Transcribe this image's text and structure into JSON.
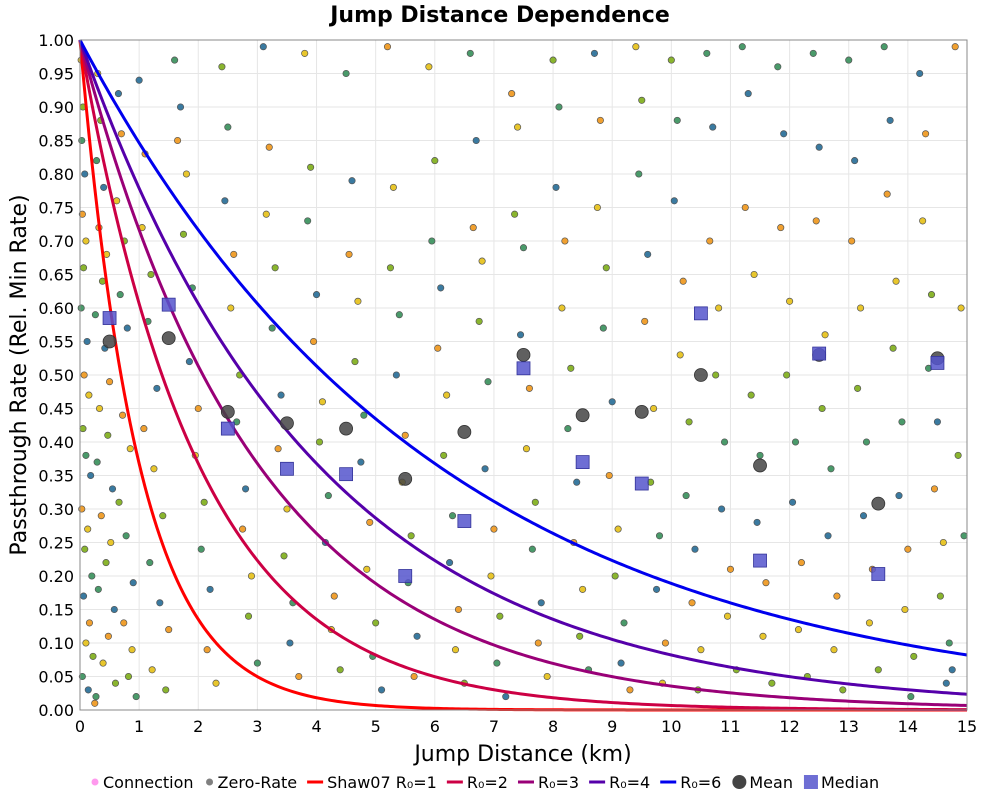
{
  "chart_data": {
    "type": "scatter",
    "title": "Jump Distance Dependence",
    "xlabel": "Jump Distance (km)",
    "ylabel": "Passthrough Rate (Rel. Min Rate)",
    "xlim": [
      0,
      15
    ],
    "ylim": [
      0,
      1
    ],
    "x_ticks": [
      0,
      1,
      2,
      3,
      4,
      5,
      6,
      7,
      8,
      9,
      10,
      11,
      12,
      13,
      14,
      15
    ],
    "y_ticks": [
      0.0,
      0.05,
      0.1,
      0.15,
      0.2,
      0.25,
      0.3,
      0.35,
      0.4,
      0.45,
      0.5,
      0.55,
      0.6,
      0.65,
      0.7,
      0.75,
      0.8,
      0.85,
      0.9,
      0.95,
      1.0
    ],
    "grid": true,
    "legend_position": "bottom",
    "colors": {
      "connection": "#ff99ee",
      "zero_rate": "#808080",
      "r1": "#ff0000",
      "r2": "#cc0044",
      "r3": "#990077",
      "r4": "#5500aa",
      "r6": "#0000ee",
      "mean": "#444444",
      "median": "#5555cc",
      "point_palette": [
        "#e8c62c",
        "#8ab52e",
        "#4a9a6a",
        "#3a7aa0",
        "#f0a030"
      ]
    },
    "curves": [
      {
        "name": "Shaw07 R₀=1",
        "formula": "exp(-x/R0)",
        "r0": 1,
        "color_key": "r1"
      },
      {
        "name": "R₀=2",
        "formula": "exp(-x/R0)",
        "r0": 2,
        "color_key": "r2"
      },
      {
        "name": "R₀=3",
        "formula": "exp(-x/R0)",
        "r0": 3,
        "color_key": "r3"
      },
      {
        "name": "R₀=4",
        "formula": "exp(-x/R0)",
        "r0": 4,
        "color_key": "r4"
      },
      {
        "name": "R₀=6",
        "formula": "exp(-x/R0)",
        "r0": 6,
        "color_key": "r6"
      }
    ],
    "mean": {
      "name": "Mean",
      "x": [
        0.5,
        1.5,
        2.5,
        3.5,
        4.5,
        5.5,
        6.5,
        7.5,
        8.5,
        9.5,
        10.5,
        11.5,
        12.5,
        13.5,
        14.5
      ],
      "y": [
        0.55,
        0.555,
        0.445,
        0.428,
        0.42,
        0.345,
        0.415,
        0.53,
        0.44,
        0.445,
        0.5,
        0.365,
        0.53,
        0.308,
        0.525
      ]
    },
    "median": {
      "name": "Median",
      "x": [
        0.5,
        1.5,
        2.5,
        3.5,
        4.5,
        5.5,
        6.5,
        7.5,
        8.5,
        9.5,
        10.5,
        11.5,
        12.5,
        13.5,
        14.5
      ],
      "y": [
        0.585,
        0.605,
        0.42,
        0.36,
        0.352,
        0.2,
        0.282,
        0.51,
        0.37,
        0.338,
        0.592,
        0.223,
        0.532,
        0.203,
        0.518
      ]
    },
    "scatter_points": [
      [
        0.02,
        0.97
      ],
      [
        0.05,
        0.9
      ],
      [
        0.03,
        0.85
      ],
      [
        0.08,
        0.8
      ],
      [
        0.04,
        0.74
      ],
      [
        0.1,
        0.7
      ],
      [
        0.06,
        0.66
      ],
      [
        0.02,
        0.6
      ],
      [
        0.12,
        0.55
      ],
      [
        0.07,
        0.5
      ],
      [
        0.15,
        0.47
      ],
      [
        0.05,
        0.42
      ],
      [
        0.1,
        0.38
      ],
      [
        0.18,
        0.35
      ],
      [
        0.03,
        0.3
      ],
      [
        0.13,
        0.27
      ],
      [
        0.08,
        0.24
      ],
      [
        0.2,
        0.2
      ],
      [
        0.06,
        0.17
      ],
      [
        0.16,
        0.13
      ],
      [
        0.1,
        0.1
      ],
      [
        0.22,
        0.08
      ],
      [
        0.04,
        0.05
      ],
      [
        0.14,
        0.03
      ],
      [
        0.25,
        0.01
      ],
      [
        0.3,
        0.95
      ],
      [
        0.35,
        0.88
      ],
      [
        0.28,
        0.82
      ],
      [
        0.4,
        0.78
      ],
      [
        0.32,
        0.72
      ],
      [
        0.45,
        0.68
      ],
      [
        0.38,
        0.64
      ],
      [
        0.26,
        0.59
      ],
      [
        0.42,
        0.54
      ],
      [
        0.5,
        0.49
      ],
      [
        0.33,
        0.45
      ],
      [
        0.47,
        0.41
      ],
      [
        0.29,
        0.37
      ],
      [
        0.55,
        0.33
      ],
      [
        0.36,
        0.29
      ],
      [
        0.52,
        0.25
      ],
      [
        0.44,
        0.22
      ],
      [
        0.31,
        0.18
      ],
      [
        0.58,
        0.15
      ],
      [
        0.48,
        0.11
      ],
      [
        0.39,
        0.07
      ],
      [
        0.6,
        0.04
      ],
      [
        0.27,
        0.02
      ],
      [
        0.65,
        0.92
      ],
      [
        0.7,
        0.86
      ],
      [
        0.62,
        0.76
      ],
      [
        0.75,
        0.7
      ],
      [
        0.68,
        0.62
      ],
      [
        0.8,
        0.57
      ],
      [
        0.72,
        0.44
      ],
      [
        0.85,
        0.39
      ],
      [
        0.66,
        0.31
      ],
      [
        0.78,
        0.26
      ],
      [
        0.9,
        0.19
      ],
      [
        0.74,
        0.13
      ],
      [
        0.88,
        0.09
      ],
      [
        0.82,
        0.05
      ],
      [
        0.95,
        0.02
      ],
      [
        1.0,
        0.94
      ],
      [
        1.1,
        0.83
      ],
      [
        1.05,
        0.72
      ],
      [
        1.2,
        0.65
      ],
      [
        1.15,
        0.58
      ],
      [
        1.3,
        0.48
      ],
      [
        1.08,
        0.42
      ],
      [
        1.25,
        0.36
      ],
      [
        1.4,
        0.29
      ],
      [
        1.18,
        0.22
      ],
      [
        1.35,
        0.16
      ],
      [
        1.5,
        0.12
      ],
      [
        1.22,
        0.06
      ],
      [
        1.45,
        0.03
      ],
      [
        1.6,
        0.97
      ],
      [
        1.7,
        0.9
      ],
      [
        1.65,
        0.85
      ],
      [
        1.8,
        0.8
      ],
      [
        1.75,
        0.71
      ],
      [
        1.9,
        0.63
      ],
      [
        1.85,
        0.52
      ],
      [
        2.0,
        0.45
      ],
      [
        1.95,
        0.38
      ],
      [
        2.1,
        0.31
      ],
      [
        2.05,
        0.24
      ],
      [
        2.2,
        0.18
      ],
      [
        2.15,
        0.09
      ],
      [
        2.3,
        0.04
      ],
      [
        2.4,
        0.96
      ],
      [
        2.5,
        0.87
      ],
      [
        2.45,
        0.76
      ],
      [
        2.6,
        0.68
      ],
      [
        2.55,
        0.6
      ],
      [
        2.7,
        0.5
      ],
      [
        2.65,
        0.43
      ],
      [
        2.8,
        0.33
      ],
      [
        2.75,
        0.27
      ],
      [
        2.9,
        0.2
      ],
      [
        2.85,
        0.14
      ],
      [
        3.0,
        0.07
      ],
      [
        3.1,
        0.99
      ],
      [
        3.2,
        0.84
      ],
      [
        3.15,
        0.74
      ],
      [
        3.3,
        0.66
      ],
      [
        3.25,
        0.57
      ],
      [
        3.4,
        0.47
      ],
      [
        3.35,
        0.39
      ],
      [
        3.5,
        0.3
      ],
      [
        3.45,
        0.23
      ],
      [
        3.6,
        0.16
      ],
      [
        3.55,
        0.1
      ],
      [
        3.7,
        0.05
      ],
      [
        3.8,
        0.98
      ],
      [
        3.9,
        0.81
      ],
      [
        3.85,
        0.73
      ],
      [
        4.0,
        0.62
      ],
      [
        3.95,
        0.55
      ],
      [
        4.1,
        0.46
      ],
      [
        4.05,
        0.4
      ],
      [
        4.2,
        0.32
      ],
      [
        4.15,
        0.25
      ],
      [
        4.3,
        0.17
      ],
      [
        4.25,
        0.12
      ],
      [
        4.4,
        0.06
      ],
      [
        4.5,
        0.95
      ],
      [
        4.6,
        0.79
      ],
      [
        4.55,
        0.68
      ],
      [
        4.7,
        0.61
      ],
      [
        4.65,
        0.52
      ],
      [
        4.8,
        0.44
      ],
      [
        4.75,
        0.37
      ],
      [
        4.9,
        0.28
      ],
      [
        4.85,
        0.21
      ],
      [
        5.0,
        0.13
      ],
      [
        4.95,
        0.08
      ],
      [
        5.1,
        0.03
      ],
      [
        5.2,
        0.99
      ],
      [
        5.3,
        0.78
      ],
      [
        5.25,
        0.66
      ],
      [
        5.4,
        0.59
      ],
      [
        5.35,
        0.5
      ],
      [
        5.5,
        0.41
      ],
      [
        5.45,
        0.34
      ],
      [
        5.6,
        0.26
      ],
      [
        5.55,
        0.19
      ],
      [
        5.7,
        0.11
      ],
      [
        5.65,
        0.05
      ],
      [
        5.9,
        0.96
      ],
      [
        6.0,
        0.82
      ],
      [
        5.95,
        0.7
      ],
      [
        6.1,
        0.63
      ],
      [
        6.05,
        0.54
      ],
      [
        6.2,
        0.47
      ],
      [
        6.15,
        0.38
      ],
      [
        6.3,
        0.29
      ],
      [
        6.25,
        0.22
      ],
      [
        6.4,
        0.15
      ],
      [
        6.35,
        0.09
      ],
      [
        6.5,
        0.04
      ],
      [
        6.6,
        0.98
      ],
      [
        6.7,
        0.85
      ],
      [
        6.65,
        0.72
      ],
      [
        6.8,
        0.67
      ],
      [
        6.75,
        0.58
      ],
      [
        6.9,
        0.49
      ],
      [
        6.85,
        0.36
      ],
      [
        7.0,
        0.27
      ],
      [
        6.95,
        0.2
      ],
      [
        7.1,
        0.14
      ],
      [
        7.05,
        0.07
      ],
      [
        7.2,
        0.02
      ],
      [
        7.3,
        0.92
      ],
      [
        7.4,
        0.87
      ],
      [
        7.35,
        0.74
      ],
      [
        7.5,
        0.69
      ],
      [
        7.45,
        0.56
      ],
      [
        7.6,
        0.48
      ],
      [
        7.55,
        0.39
      ],
      [
        7.7,
        0.31
      ],
      [
        7.65,
        0.24
      ],
      [
        7.8,
        0.16
      ],
      [
        7.75,
        0.1
      ],
      [
        7.9,
        0.05
      ],
      [
        8.0,
        0.97
      ],
      [
        8.1,
        0.9
      ],
      [
        8.05,
        0.78
      ],
      [
        8.2,
        0.7
      ],
      [
        8.15,
        0.6
      ],
      [
        8.3,
        0.51
      ],
      [
        8.25,
        0.42
      ],
      [
        8.4,
        0.34
      ],
      [
        8.35,
        0.25
      ],
      [
        8.5,
        0.18
      ],
      [
        8.45,
        0.11
      ],
      [
        8.6,
        0.06
      ],
      [
        8.7,
        0.98
      ],
      [
        8.8,
        0.88
      ],
      [
        8.75,
        0.75
      ],
      [
        8.9,
        0.66
      ],
      [
        8.85,
        0.57
      ],
      [
        9.0,
        0.46
      ],
      [
        8.95,
        0.35
      ],
      [
        9.1,
        0.27
      ],
      [
        9.05,
        0.2
      ],
      [
        9.2,
        0.13
      ],
      [
        9.15,
        0.07
      ],
      [
        9.3,
        0.03
      ],
      [
        9.4,
        0.99
      ],
      [
        9.5,
        0.91
      ],
      [
        9.45,
        0.8
      ],
      [
        9.6,
        0.68
      ],
      [
        9.55,
        0.58
      ],
      [
        9.7,
        0.45
      ],
      [
        9.65,
        0.34
      ],
      [
        9.8,
        0.26
      ],
      [
        9.75,
        0.18
      ],
      [
        9.9,
        0.1
      ],
      [
        9.85,
        0.04
      ],
      [
        10.0,
        0.97
      ],
      [
        10.1,
        0.88
      ],
      [
        10.05,
        0.76
      ],
      [
        10.2,
        0.64
      ],
      [
        10.15,
        0.53
      ],
      [
        10.3,
        0.43
      ],
      [
        10.25,
        0.32
      ],
      [
        10.4,
        0.24
      ],
      [
        10.35,
        0.16
      ],
      [
        10.5,
        0.09
      ],
      [
        10.45,
        0.03
      ],
      [
        10.6,
        0.98
      ],
      [
        10.7,
        0.87
      ],
      [
        10.65,
        0.7
      ],
      [
        10.8,
        0.6
      ],
      [
        10.75,
        0.5
      ],
      [
        10.9,
        0.4
      ],
      [
        10.85,
        0.3
      ],
      [
        11.0,
        0.21
      ],
      [
        10.95,
        0.14
      ],
      [
        11.1,
        0.06
      ],
      [
        11.2,
        0.99
      ],
      [
        11.3,
        0.92
      ],
      [
        11.25,
        0.75
      ],
      [
        11.4,
        0.65
      ],
      [
        11.35,
        0.47
      ],
      [
        11.5,
        0.38
      ],
      [
        11.45,
        0.28
      ],
      [
        11.6,
        0.19
      ],
      [
        11.55,
        0.11
      ],
      [
        11.7,
        0.04
      ],
      [
        11.8,
        0.96
      ],
      [
        11.9,
        0.86
      ],
      [
        11.85,
        0.72
      ],
      [
        12.0,
        0.61
      ],
      [
        11.95,
        0.5
      ],
      [
        12.1,
        0.4
      ],
      [
        12.05,
        0.31
      ],
      [
        12.2,
        0.22
      ],
      [
        12.15,
        0.12
      ],
      [
        12.3,
        0.05
      ],
      [
        12.4,
        0.98
      ],
      [
        12.5,
        0.84
      ],
      [
        12.45,
        0.73
      ],
      [
        12.6,
        0.56
      ],
      [
        12.55,
        0.45
      ],
      [
        12.7,
        0.36
      ],
      [
        12.65,
        0.26
      ],
      [
        12.8,
        0.17
      ],
      [
        12.75,
        0.09
      ],
      [
        12.9,
        0.03
      ],
      [
        13.0,
        0.97
      ],
      [
        13.1,
        0.82
      ],
      [
        13.05,
        0.7
      ],
      [
        13.2,
        0.6
      ],
      [
        13.15,
        0.48
      ],
      [
        13.3,
        0.4
      ],
      [
        13.25,
        0.29
      ],
      [
        13.4,
        0.21
      ],
      [
        13.35,
        0.13
      ],
      [
        13.5,
        0.06
      ],
      [
        13.6,
        0.99
      ],
      [
        13.7,
        0.88
      ],
      [
        13.65,
        0.77
      ],
      [
        13.8,
        0.64
      ],
      [
        13.75,
        0.54
      ],
      [
        13.9,
        0.43
      ],
      [
        13.85,
        0.32
      ],
      [
        14.0,
        0.24
      ],
      [
        13.95,
        0.15
      ],
      [
        14.1,
        0.08
      ],
      [
        14.05,
        0.02
      ],
      [
        14.2,
        0.95
      ],
      [
        14.3,
        0.86
      ],
      [
        14.25,
        0.73
      ],
      [
        14.4,
        0.62
      ],
      [
        14.35,
        0.51
      ],
      [
        14.5,
        0.43
      ],
      [
        14.45,
        0.33
      ],
      [
        14.6,
        0.25
      ],
      [
        14.55,
        0.17
      ],
      [
        14.7,
        0.1
      ],
      [
        14.65,
        0.04
      ],
      [
        14.8,
        0.99
      ],
      [
        14.9,
        0.6
      ],
      [
        14.85,
        0.38
      ],
      [
        14.95,
        0.26
      ],
      [
        14.75,
        0.06
      ]
    ],
    "legend": [
      "Connection",
      "Zero-Rate",
      "Shaw07 R₀=1",
      "R₀=2",
      "R₀=3",
      "R₀=4",
      "R₀=6",
      "Mean",
      "Median"
    ]
  }
}
